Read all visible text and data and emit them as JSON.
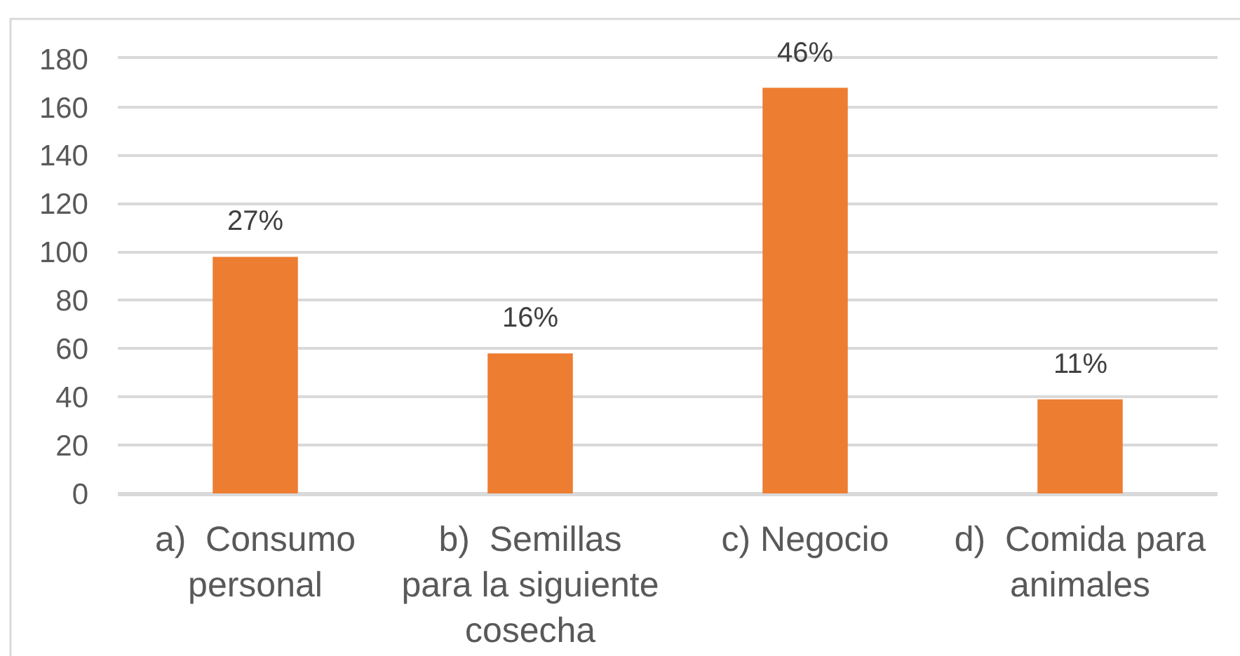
{
  "chart_data": {
    "type": "bar",
    "categories": [
      "a)  Consumo\npersonal",
      "b)  Semillas\npara la siguiente\ncosecha",
      "c) Negocio",
      "d)  Comida para\nanimales"
    ],
    "values": [
      98,
      58,
      168,
      39
    ],
    "color": "#ed7d31",
    "annotations": [
      {
        "text": "27%",
        "x": "a)  Consumo\npersonal",
        "y": 98
      },
      {
        "text": "16%",
        "x": "b)  Semillas\npara la siguiente\ncosecha",
        "y": 58
      },
      {
        "text": "46%",
        "x": "c) Negocio",
        "y": 168
      },
      {
        "text": "11%",
        "x": "d)  Comida para\nanimales",
        "y": 39
      }
    ],
    "ylim": [
      0,
      180
    ],
    "yticks": [
      0,
      20,
      40,
      60,
      80,
      100,
      120,
      140,
      160,
      180
    ],
    "grid": "y"
  }
}
